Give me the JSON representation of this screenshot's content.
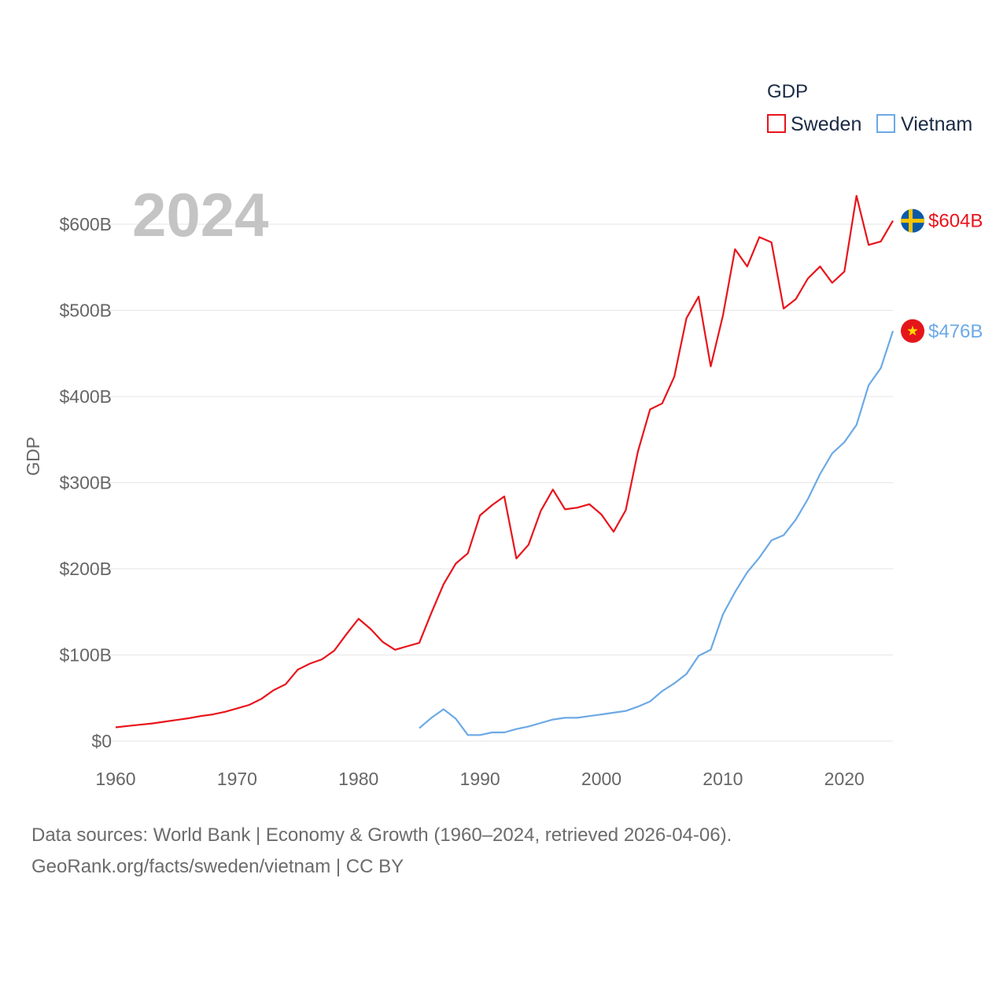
{
  "chart_data": {
    "type": "line",
    "title": "GDP",
    "year_display": "2024",
    "ylabel": "GDP",
    "xlabel": "",
    "xlim": [
      1960,
      2024
    ],
    "ylim": [
      0,
      640
    ],
    "y_unit": "billion USD",
    "x_ticks": [
      1960,
      1970,
      1980,
      1990,
      2000,
      2010,
      2020
    ],
    "x_tick_labels": [
      "1960",
      "1970",
      "1980",
      "1990",
      "2000",
      "2010",
      "2020"
    ],
    "y_ticks": [
      0,
      100,
      200,
      300,
      400,
      500,
      600
    ],
    "y_tick_labels": [
      "$0",
      "$100B",
      "$200B",
      "$300B",
      "$400B",
      "$500B",
      "$600B"
    ],
    "legend": {
      "title": "GDP",
      "position": "top-right"
    },
    "series": [
      {
        "name": "Sweden",
        "color": "#e8141b",
        "flag": "sweden-flag",
        "end_label": "$604B",
        "points": [
          [
            1960,
            16
          ],
          [
            1961,
            17.5
          ],
          [
            1962,
            19
          ],
          [
            1963,
            20.5
          ],
          [
            1964,
            22.5
          ],
          [
            1965,
            24.5
          ],
          [
            1966,
            26.5
          ],
          [
            1967,
            29
          ],
          [
            1968,
            31
          ],
          [
            1969,
            34
          ],
          [
            1970,
            38
          ],
          [
            1971,
            42
          ],
          [
            1972,
            49
          ],
          [
            1973,
            59
          ],
          [
            1974,
            66
          ],
          [
            1975,
            83
          ],
          [
            1976,
            90
          ],
          [
            1977,
            95
          ],
          [
            1978,
            105
          ],
          [
            1979,
            124
          ],
          [
            1980,
            142
          ],
          [
            1981,
            130
          ],
          [
            1982,
            115
          ],
          [
            1983,
            106
          ],
          [
            1984,
            110
          ],
          [
            1985,
            114
          ],
          [
            1986,
            149
          ],
          [
            1987,
            182
          ],
          [
            1988,
            206
          ],
          [
            1989,
            218
          ],
          [
            1990,
            262
          ],
          [
            1991,
            274
          ],
          [
            1992,
            284
          ],
          [
            1993,
            212
          ],
          [
            1994,
            228
          ],
          [
            1995,
            267
          ],
          [
            1996,
            292
          ],
          [
            1997,
            269
          ],
          [
            1998,
            271
          ],
          [
            1999,
            275
          ],
          [
            2000,
            263
          ],
          [
            2001,
            243
          ],
          [
            2002,
            268
          ],
          [
            2003,
            336
          ],
          [
            2004,
            385
          ],
          [
            2005,
            392
          ],
          [
            2006,
            423
          ],
          [
            2007,
            491
          ],
          [
            2008,
            516
          ],
          [
            2009,
            435
          ],
          [
            2010,
            494
          ],
          [
            2011,
            571
          ],
          [
            2012,
            551
          ],
          [
            2013,
            585
          ],
          [
            2014,
            579
          ],
          [
            2015,
            502
          ],
          [
            2016,
            513
          ],
          [
            2017,
            537
          ],
          [
            2018,
            551
          ],
          [
            2019,
            532
          ],
          [
            2020,
            545
          ],
          [
            2021,
            633
          ],
          [
            2022,
            576
          ],
          [
            2023,
            580
          ],
          [
            2024,
            604
          ]
        ]
      },
      {
        "name": "Vietnam",
        "color": "#6ca9e6",
        "flag": "vietnam-flag",
        "end_label": "$476B",
        "points": [
          [
            1985,
            15
          ],
          [
            1986,
            27
          ],
          [
            1987,
            37
          ],
          [
            1988,
            26
          ],
          [
            1989,
            7
          ],
          [
            1990,
            7
          ],
          [
            1991,
            10
          ],
          [
            1992,
            10
          ],
          [
            1993,
            14
          ],
          [
            1994,
            17
          ],
          [
            1995,
            21
          ],
          [
            1996,
            25
          ],
          [
            1997,
            27
          ],
          [
            1998,
            27
          ],
          [
            1999,
            29
          ],
          [
            2000,
            31
          ],
          [
            2001,
            33
          ],
          [
            2002,
            35
          ],
          [
            2003,
            40
          ],
          [
            2004,
            46
          ],
          [
            2005,
            58
          ],
          [
            2006,
            67
          ],
          [
            2007,
            78
          ],
          [
            2008,
            99
          ],
          [
            2009,
            106
          ],
          [
            2010,
            147
          ],
          [
            2011,
            173
          ],
          [
            2012,
            196
          ],
          [
            2013,
            213
          ],
          [
            2014,
            233
          ],
          [
            2015,
            239
          ],
          [
            2016,
            257
          ],
          [
            2017,
            281
          ],
          [
            2018,
            310
          ],
          [
            2019,
            334
          ],
          [
            2020,
            347
          ],
          [
            2021,
            367
          ],
          [
            2022,
            413
          ],
          [
            2023,
            433
          ],
          [
            2024,
            476
          ]
        ]
      }
    ]
  },
  "footer": {
    "source_line": "Data sources: World Bank | Economy & Growth (1960–2024, retrieved 2026-04-06).",
    "credit_line": "GeoRank.org/facts/sweden/vietnam | CC BY"
  }
}
